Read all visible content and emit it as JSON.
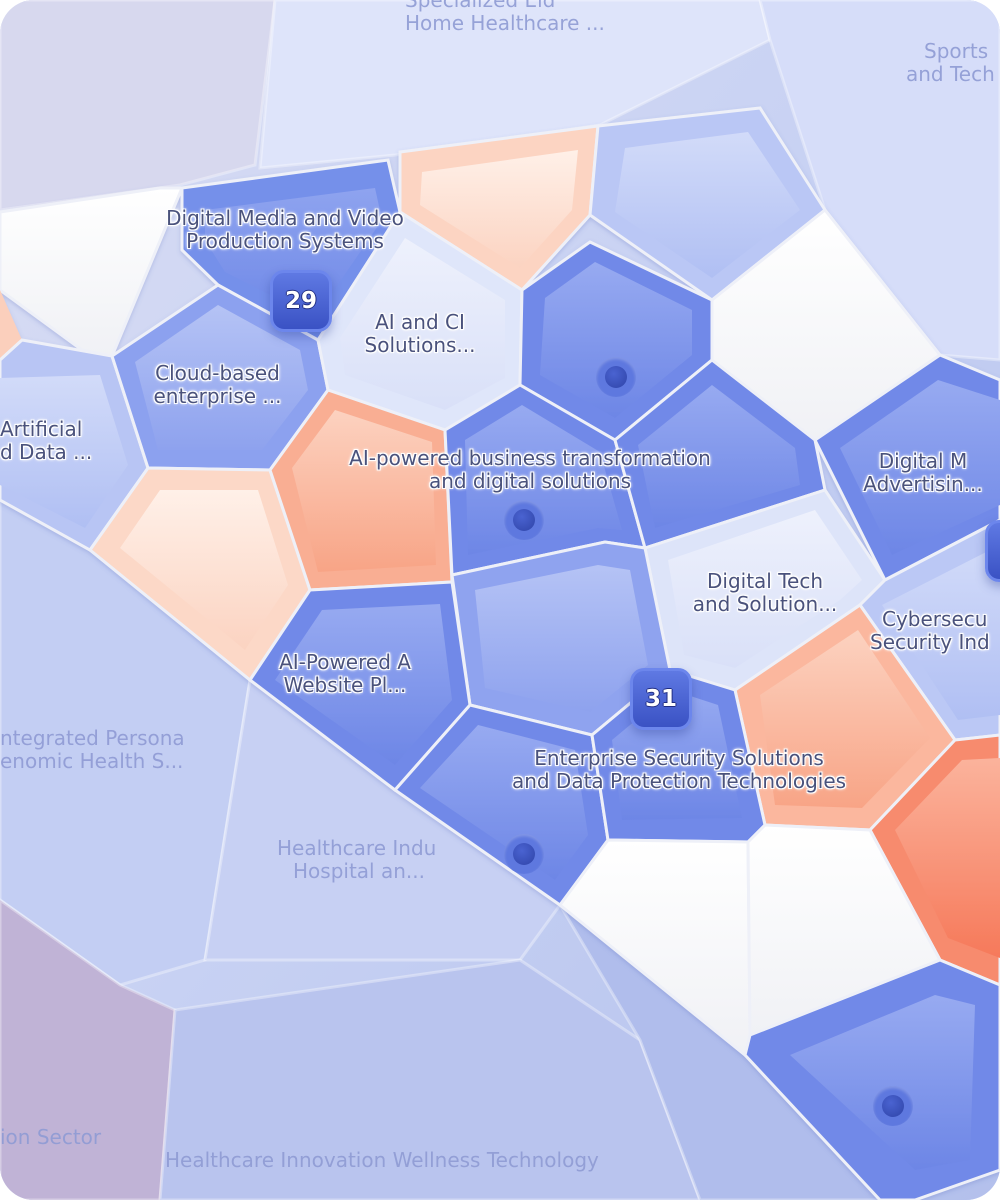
{
  "map": {
    "focused_clusters": [
      {
        "id": "digital-media",
        "lines": [
          "Digital Media and Video",
          "Production Systems"
        ]
      },
      {
        "id": "ai-ci",
        "lines": [
          "AI and CI",
          "Solutions..."
        ]
      },
      {
        "id": "cloud-enterprise",
        "lines": [
          "Cloud-based",
          "enterprise ..."
        ]
      },
      {
        "id": "artificial-data",
        "lines": [
          "Artificial",
          "d Data ..."
        ]
      },
      {
        "id": "ai-business",
        "lines": [
          "AI-powered business transformation",
          "and digital solutions"
        ]
      },
      {
        "id": "digital-marketing",
        "lines": [
          "Digital M",
          "Advertisin..."
        ]
      },
      {
        "id": "digital-tech",
        "lines": [
          "Digital Tech",
          "and Solution..."
        ]
      },
      {
        "id": "cybersecurity",
        "lines": [
          "Cybersecu",
          "Security Ind"
        ]
      },
      {
        "id": "ai-website",
        "lines": [
          "AI-Powered A",
          "Website Pl..."
        ]
      },
      {
        "id": "enterprise-security",
        "lines": [
          "Enterprise Security Solutions",
          "and Data Protection Technologies"
        ]
      }
    ],
    "background_clusters": [
      {
        "id": "home-healthcare",
        "lines": [
          "Specialized Eld",
          "Home Healthcare ..."
        ]
      },
      {
        "id": "sports-tech",
        "lines": [
          "Sports",
          "and Tech"
        ]
      },
      {
        "id": "personal-genomic",
        "lines": [
          "ntegrated Persona",
          "enomic Health S..."
        ]
      },
      {
        "id": "healthcare-hospital",
        "lines": [
          "Healthcare Indu",
          "Hospital an..."
        ]
      },
      {
        "id": "ion-sector",
        "lines": [
          "ion Sector"
        ]
      },
      {
        "id": "healthcare-innovation",
        "lines": [
          "Healthcare Innovation Wellness Technology"
        ]
      }
    ],
    "badges": [
      {
        "id": "badge-29",
        "count": "29"
      },
      {
        "id": "badge-31",
        "count": "31"
      }
    ],
    "colors": {
      "blue_deep": "#7189e8",
      "blue_mid": "#8fa3ef",
      "blue_light": "#b5c3f4",
      "blue_pale": "#dbe2f9",
      "peach_light": "#fcd6c4",
      "peach": "#f9ad92",
      "coral": "#f8876a",
      "white": "#f7f7f9",
      "badge": "#4460d0"
    }
  }
}
